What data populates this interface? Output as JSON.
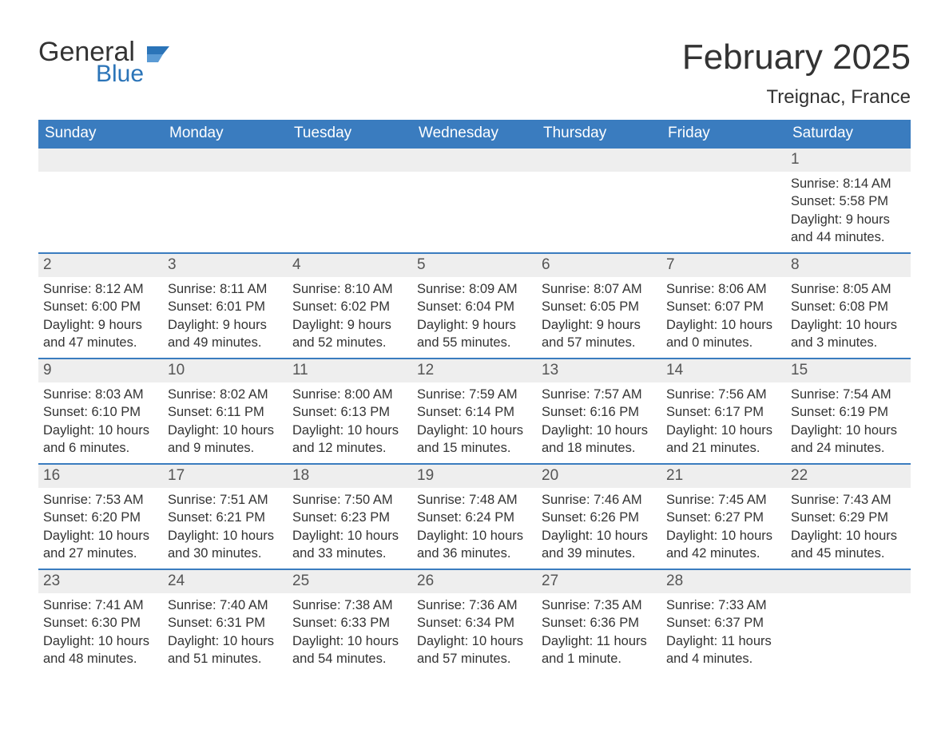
{
  "brand": {
    "word1": "General",
    "word2": "Blue",
    "text_color": "#333333",
    "accent_color": "#2b74b8"
  },
  "title": {
    "month_year": "February 2025",
    "location": "Treignac, France"
  },
  "style": {
    "header_bg": "#3a7cbf",
    "header_text": "#ffffff",
    "daybar_bg": "#eeeeee",
    "daybar_border": "#3a7cbf",
    "body_text": "#333333",
    "page_bg": "#ffffff",
    "header_fontsize": 19,
    "daynum_fontsize": 19,
    "body_fontsize": 16.5,
    "title_fontsize": 44,
    "location_fontsize": 24
  },
  "weekdays": [
    "Sunday",
    "Monday",
    "Tuesday",
    "Wednesday",
    "Thursday",
    "Friday",
    "Saturday"
  ],
  "labels": {
    "sunrise": "Sunrise",
    "sunset": "Sunset",
    "daylight": "Daylight"
  },
  "weeks": [
    [
      null,
      null,
      null,
      null,
      null,
      null,
      {
        "day": "1",
        "sunrise": "8:14 AM",
        "sunset": "5:58 PM",
        "daylight": "9 hours and 44 minutes."
      }
    ],
    [
      {
        "day": "2",
        "sunrise": "8:12 AM",
        "sunset": "6:00 PM",
        "daylight": "9 hours and 47 minutes."
      },
      {
        "day": "3",
        "sunrise": "8:11 AM",
        "sunset": "6:01 PM",
        "daylight": "9 hours and 49 minutes."
      },
      {
        "day": "4",
        "sunrise": "8:10 AM",
        "sunset": "6:02 PM",
        "daylight": "9 hours and 52 minutes."
      },
      {
        "day": "5",
        "sunrise": "8:09 AM",
        "sunset": "6:04 PM",
        "daylight": "9 hours and 55 minutes."
      },
      {
        "day": "6",
        "sunrise": "8:07 AM",
        "sunset": "6:05 PM",
        "daylight": "9 hours and 57 minutes."
      },
      {
        "day": "7",
        "sunrise": "8:06 AM",
        "sunset": "6:07 PM",
        "daylight": "10 hours and 0 minutes."
      },
      {
        "day": "8",
        "sunrise": "8:05 AM",
        "sunset": "6:08 PM",
        "daylight": "10 hours and 3 minutes."
      }
    ],
    [
      {
        "day": "9",
        "sunrise": "8:03 AM",
        "sunset": "6:10 PM",
        "daylight": "10 hours and 6 minutes."
      },
      {
        "day": "10",
        "sunrise": "8:02 AM",
        "sunset": "6:11 PM",
        "daylight": "10 hours and 9 minutes."
      },
      {
        "day": "11",
        "sunrise": "8:00 AM",
        "sunset": "6:13 PM",
        "daylight": "10 hours and 12 minutes."
      },
      {
        "day": "12",
        "sunrise": "7:59 AM",
        "sunset": "6:14 PM",
        "daylight": "10 hours and 15 minutes."
      },
      {
        "day": "13",
        "sunrise": "7:57 AM",
        "sunset": "6:16 PM",
        "daylight": "10 hours and 18 minutes."
      },
      {
        "day": "14",
        "sunrise": "7:56 AM",
        "sunset": "6:17 PM",
        "daylight": "10 hours and 21 minutes."
      },
      {
        "day": "15",
        "sunrise": "7:54 AM",
        "sunset": "6:19 PM",
        "daylight": "10 hours and 24 minutes."
      }
    ],
    [
      {
        "day": "16",
        "sunrise": "7:53 AM",
        "sunset": "6:20 PM",
        "daylight": "10 hours and 27 minutes."
      },
      {
        "day": "17",
        "sunrise": "7:51 AM",
        "sunset": "6:21 PM",
        "daylight": "10 hours and 30 minutes."
      },
      {
        "day": "18",
        "sunrise": "7:50 AM",
        "sunset": "6:23 PM",
        "daylight": "10 hours and 33 minutes."
      },
      {
        "day": "19",
        "sunrise": "7:48 AM",
        "sunset": "6:24 PM",
        "daylight": "10 hours and 36 minutes."
      },
      {
        "day": "20",
        "sunrise": "7:46 AM",
        "sunset": "6:26 PM",
        "daylight": "10 hours and 39 minutes."
      },
      {
        "day": "21",
        "sunrise": "7:45 AM",
        "sunset": "6:27 PM",
        "daylight": "10 hours and 42 minutes."
      },
      {
        "day": "22",
        "sunrise": "7:43 AM",
        "sunset": "6:29 PM",
        "daylight": "10 hours and 45 minutes."
      }
    ],
    [
      {
        "day": "23",
        "sunrise": "7:41 AM",
        "sunset": "6:30 PM",
        "daylight": "10 hours and 48 minutes."
      },
      {
        "day": "24",
        "sunrise": "7:40 AM",
        "sunset": "6:31 PM",
        "daylight": "10 hours and 51 minutes."
      },
      {
        "day": "25",
        "sunrise": "7:38 AM",
        "sunset": "6:33 PM",
        "daylight": "10 hours and 54 minutes."
      },
      {
        "day": "26",
        "sunrise": "7:36 AM",
        "sunset": "6:34 PM",
        "daylight": "10 hours and 57 minutes."
      },
      {
        "day": "27",
        "sunrise": "7:35 AM",
        "sunset": "6:36 PM",
        "daylight": "11 hours and 1 minute."
      },
      {
        "day": "28",
        "sunrise": "7:33 AM",
        "sunset": "6:37 PM",
        "daylight": "11 hours and 4 minutes."
      },
      null
    ]
  ]
}
